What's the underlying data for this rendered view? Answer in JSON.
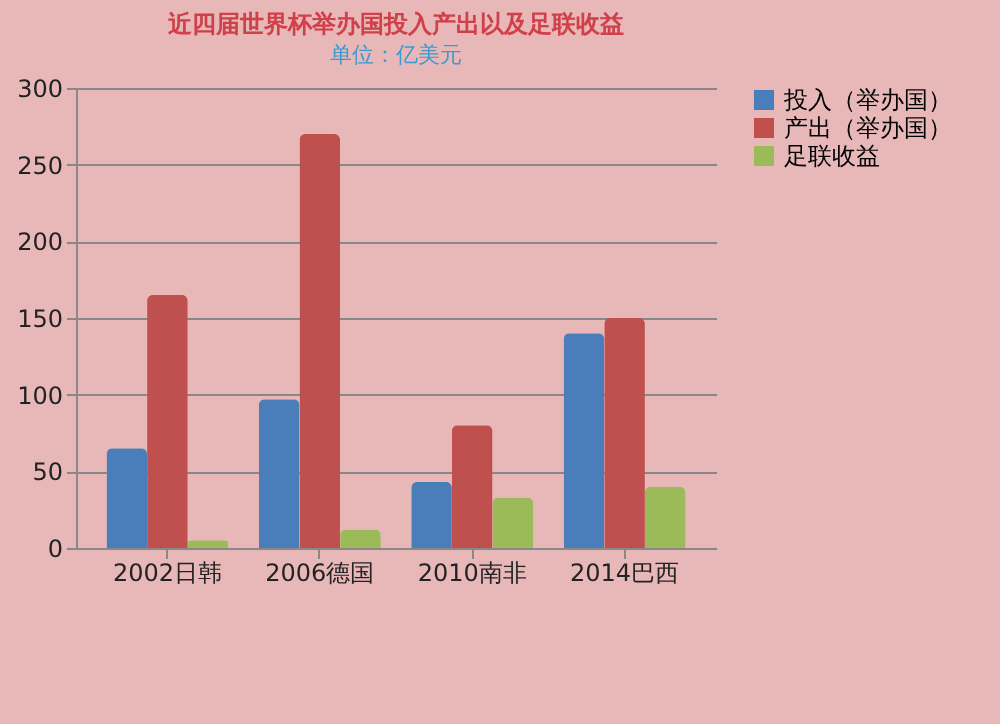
{
  "chart_data": {
    "type": "bar",
    "title": "近四届世界杯举办国投入产出以及足联收益",
    "subtitle": "单位：亿美元",
    "categories": [
      "2002日韩",
      "2006德国",
      "2010南非",
      "2014巴西"
    ],
    "series": [
      {
        "name": "投入（举办国）",
        "color": "#4a7ebb",
        "values": [
          65,
          97,
          43,
          140
        ]
      },
      {
        "name": "产出（举办国）",
        "color": "#c0504d",
        "values": [
          165,
          270,
          80,
          150
        ]
      },
      {
        "name": "足联收益",
        "color": "#9bbb59",
        "values": [
          5,
          12,
          33,
          40
        ]
      }
    ],
    "ylim": [
      0,
      300
    ],
    "yticks": [
      0,
      50,
      100,
      150,
      200,
      250,
      300
    ],
    "grid": "y",
    "legend": "right"
  }
}
